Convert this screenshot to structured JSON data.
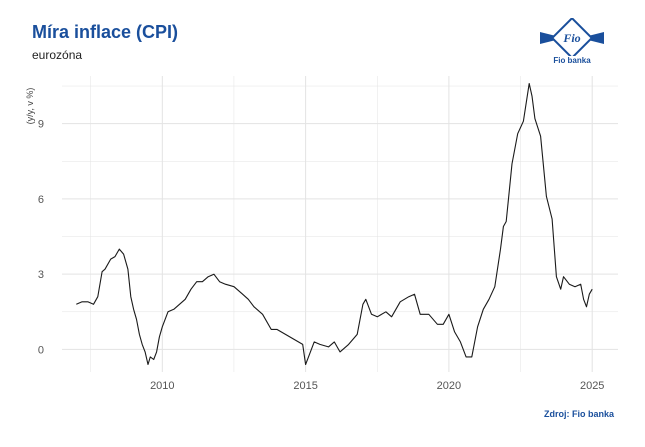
{
  "title": "Míra inflace (CPI)",
  "subtitle": "eurozóna",
  "source": "Zdroj: Fio banka",
  "logo": {
    "mark": "Fio",
    "caption": "Fio banka"
  },
  "colors": {
    "title": "#1a4f9c",
    "line": "#1a1a1a",
    "grid": "#e3e3e3"
  },
  "chart_data": {
    "type": "line",
    "title": "Míra inflace (CPI)",
    "subtitle": "eurozóna",
    "xlabel": "",
    "ylabel": "(y/y, v %)",
    "xlim": [
      2006.5,
      2025.9
    ],
    "ylim": [
      -0.9,
      10.9
    ],
    "xticks": [
      2010,
      2015,
      2020,
      2025
    ],
    "yticks": [
      0,
      3,
      6,
      9
    ],
    "grid": true,
    "series": [
      {
        "name": "",
        "x": [
          2007.0,
          2007.2,
          2007.4,
          2007.6,
          2007.75,
          2007.9,
          2008.0,
          2008.2,
          2008.35,
          2008.5,
          2008.65,
          2008.8,
          2008.9,
          2009.0,
          2009.1,
          2009.2,
          2009.3,
          2009.4,
          2009.5,
          2009.58,
          2009.7,
          2009.8,
          2009.9,
          2010.0,
          2010.2,
          2010.4,
          2010.6,
          2010.8,
          2011.0,
          2011.2,
          2011.4,
          2011.6,
          2011.8,
          2012.0,
          2012.2,
          2012.5,
          2012.8,
          2013.0,
          2013.2,
          2013.5,
          2013.8,
          2014.0,
          2014.3,
          2014.6,
          2014.9,
          2015.0,
          2015.1,
          2015.3,
          2015.5,
          2015.8,
          2016.0,
          2016.2,
          2016.5,
          2016.8,
          2017.0,
          2017.1,
          2017.3,
          2017.5,
          2017.8,
          2018.0,
          2018.3,
          2018.6,
          2018.8,
          2019.0,
          2019.3,
          2019.6,
          2019.8,
          2020.0,
          2020.2,
          2020.4,
          2020.6,
          2020.8,
          2021.0,
          2021.2,
          2021.4,
          2021.6,
          2021.8,
          2021.9,
          2022.0,
          2022.2,
          2022.4,
          2022.6,
          2022.8,
          2022.9,
          2023.0,
          2023.2,
          2023.4,
          2023.6,
          2023.75,
          2023.9,
          2024.0,
          2024.2,
          2024.4,
          2024.6,
          2024.7,
          2024.8,
          2024.9,
          2025.0
        ],
        "values": [
          1.8,
          1.9,
          1.9,
          1.8,
          2.1,
          3.1,
          3.2,
          3.6,
          3.7,
          4.0,
          3.8,
          3.2,
          2.1,
          1.6,
          1.2,
          0.6,
          0.2,
          -0.1,
          -0.6,
          -0.3,
          -0.4,
          -0.1,
          0.5,
          0.9,
          1.5,
          1.6,
          1.8,
          2.0,
          2.4,
          2.7,
          2.7,
          2.9,
          3.0,
          2.7,
          2.6,
          2.5,
          2.2,
          2.0,
          1.7,
          1.4,
          0.8,
          0.8,
          0.6,
          0.4,
          0.2,
          -0.6,
          -0.3,
          0.3,
          0.2,
          0.1,
          0.3,
          -0.1,
          0.2,
          0.6,
          1.8,
          2.0,
          1.4,
          1.3,
          1.5,
          1.3,
          1.9,
          2.1,
          2.2,
          1.4,
          1.4,
          1.0,
          1.0,
          1.4,
          0.7,
          0.3,
          -0.3,
          -0.3,
          0.9,
          1.6,
          2.0,
          2.5,
          4.0,
          4.9,
          5.1,
          7.4,
          8.6,
          9.1,
          10.6,
          10.1,
          9.2,
          8.5,
          6.1,
          5.2,
          2.9,
          2.4,
          2.9,
          2.6,
          2.5,
          2.6,
          2.0,
          1.7,
          2.2,
          2.4
        ]
      }
    ]
  }
}
